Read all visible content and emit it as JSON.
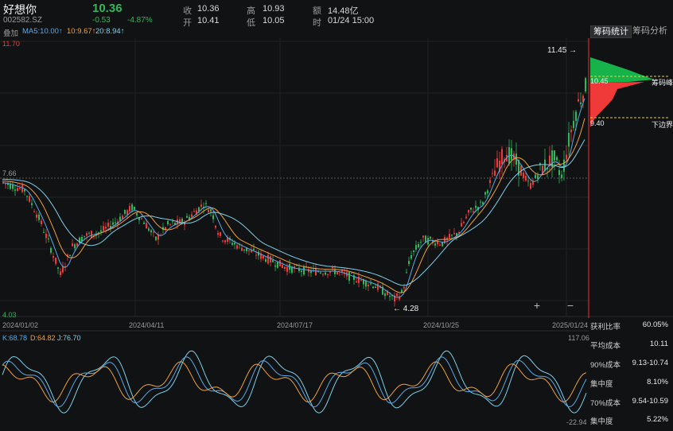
{
  "stock": {
    "name": "好想你",
    "code": "002582.SZ",
    "price": "10.36",
    "change": "-0.53",
    "change_pct": "-4.87%"
  },
  "quote": {
    "close_label": "收",
    "close": "10.36",
    "open_label": "开",
    "open": "10.41",
    "high_label": "高",
    "high": "10.93",
    "low_label": "低",
    "low": "10.05",
    "amount_label": "额",
    "amount": "14.48亿",
    "time_label": "时",
    "time": "01/24 15:00"
  },
  "ma_bar": {
    "overlay_label": "叠加",
    "ma5": "MA5:10.00↑",
    "ma10": "10:9.67↑",
    "ma20": "20:8.94↑"
  },
  "tabs": {
    "chip_stats": "筹码统计",
    "chip_analysis": "筹码分析"
  },
  "price_axis": {
    "top": "11.70",
    "mid": "7.66",
    "bottom": "4.03"
  },
  "annotations": {
    "high_mark": "11.45",
    "low_mark": "4.28",
    "arrow_right": "→",
    "arrow_left": "←"
  },
  "date_axis": [
    "2024/01/02",
    "2024/04/11",
    "2024/07/17",
    "2024/10/25",
    "2025/01/24"
  ],
  "chip_panel": {
    "peak_price": "10.45",
    "peak_label": "筹码峰",
    "lower_price": "9.40",
    "lower_label": "下边界"
  },
  "zoom": {
    "plus": "+",
    "minus": "−"
  },
  "kdj": {
    "k": "K:68.78",
    "d": "D:64.82",
    "j": "J:76.70",
    "axis_top": "117.06",
    "axis_bottom": "-22.94"
  },
  "stats": [
    {
      "label": "获利比率",
      "value": "60.05%"
    },
    {
      "label": "平均成本",
      "value": "10.11"
    },
    {
      "label": "90%成本",
      "value": "9.13-10.74"
    },
    {
      "label": "集中度",
      "value": "8.10%"
    },
    {
      "label": "70%成本",
      "value": "9.54-10.59"
    },
    {
      "label": "集中度",
      "value": "5.22%"
    }
  ],
  "colors": {
    "up": "#f03a3a",
    "down": "#2fb75b",
    "ma5": "#5aa9e6",
    "ma10": "#f2a03d",
    "ma20": "#7fd0e8",
    "k": "#5aa9e6",
    "d": "#f2a03d",
    "j": "#7fd0e8",
    "chip_profit": "#17b34a",
    "chip_loss": "#f03a3a",
    "guide": "#e6d23a"
  }
}
